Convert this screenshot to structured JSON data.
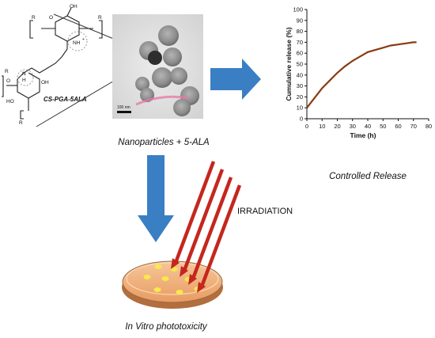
{
  "molecule": {
    "name": "CS-PGA-5ALA",
    "atoms": {
      "oh_top": "OH",
      "o_top": "O",
      "nh3": "NH",
      "plus": "+",
      "r_left": "R",
      "r_right": "R",
      "o_left": "O",
      "oh_mid": "OH",
      "ho_low": "HO",
      "n": "N",
      "h": "H",
      "r_bottom": "R",
      "r_mid": "R"
    }
  },
  "tem": {
    "scale_bar_label": "100 nm"
  },
  "captions": {
    "nanoparticles": "Nanoparticles + 5-ALA",
    "controlled_release": "Controlled Release",
    "irradiation": "IRRADIATION",
    "in_vitro": "In Vitro phototoxicity"
  },
  "colors": {
    "arrow_blue": "#3a7fc4",
    "curve": "#8a3b14",
    "laser_red": "#c4271e",
    "dish_orange": "#f2b480",
    "dot_yellow": "#f7ea4a"
  },
  "chart_data": {
    "type": "line",
    "xlabel": "Time (h)",
    "ylabel": "Cumulative release (%)",
    "xlim": [
      0,
      80
    ],
    "ylim": [
      0,
      100
    ],
    "xticks": [
      0,
      10,
      20,
      30,
      40,
      50,
      60,
      70,
      80
    ],
    "yticks": [
      0,
      10,
      20,
      30,
      40,
      50,
      60,
      70,
      80,
      90,
      100
    ],
    "grid": false,
    "series": [
      {
        "x": [
          0,
          5,
          10,
          15,
          20,
          25,
          30,
          35,
          40,
          45,
          50,
          55,
          60,
          65,
          70,
          72
        ],
        "y": [
          10,
          19,
          28,
          35,
          42,
          48,
          53,
          57,
          61,
          63,
          65,
          67,
          68,
          69,
          70,
          70
        ]
      }
    ]
  }
}
